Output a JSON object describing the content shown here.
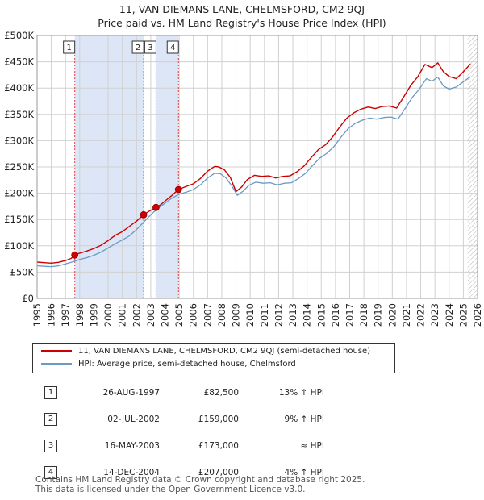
{
  "header": {
    "title": "11, VAN DIEMANS LANE, CHELMSFORD, CM2 9QJ",
    "subtitle": "Price paid vs. HM Land Registry's House Price Index (HPI)"
  },
  "colors": {
    "property": "#cc0000",
    "hpi": "#6b9ac4",
    "shade": "#dde6f7",
    "grid": "#d0d0d0",
    "marker": "#cc0000"
  },
  "chart_data": {
    "type": "line",
    "x_range": [
      1995,
      2026
    ],
    "ylim": [
      0,
      500000
    ],
    "y_ticks": [
      {
        "value": 0,
        "label": "£0"
      },
      {
        "value": 50000,
        "label": "£50K"
      },
      {
        "value": 100000,
        "label": "£100K"
      },
      {
        "value": 150000,
        "label": "£150K"
      },
      {
        "value": 200000,
        "label": "£200K"
      },
      {
        "value": 250000,
        "label": "£250K"
      },
      {
        "value": 300000,
        "label": "£300K"
      },
      {
        "value": 350000,
        "label": "£350K"
      },
      {
        "value": 400000,
        "label": "£400K"
      },
      {
        "value": 450000,
        "label": "£450K"
      },
      {
        "value": 500000,
        "label": "£500K"
      }
    ],
    "x_ticks": [
      "1995",
      "1996",
      "1997",
      "1998",
      "1999",
      "2000",
      "2001",
      "2002",
      "2003",
      "2004",
      "2005",
      "2006",
      "2007",
      "2008",
      "2009",
      "2010",
      "2011",
      "2012",
      "2013",
      "2014",
      "2015",
      "2016",
      "2017",
      "2018",
      "2019",
      "2020",
      "2021",
      "2022",
      "2023",
      "2024",
      "2025",
      "2026"
    ],
    "shaded_periods": [
      [
        1997.65,
        2002.5
      ],
      [
        2003.37,
        2004.95
      ]
    ],
    "hatched_from": 2025.3,
    "series": [
      {
        "name": "11, VAN DIEMANS LANE, CHELMSFORD, CM2 9QJ (semi-detached house)",
        "color": "#cc0000",
        "points": [
          [
            1995.0,
            69000
          ],
          [
            1995.5,
            68000
          ],
          [
            1996.0,
            67000
          ],
          [
            1996.5,
            68500
          ],
          [
            1997.0,
            72000
          ],
          [
            1997.4,
            76000
          ],
          [
            1997.65,
            82500
          ],
          [
            1998.0,
            86000
          ],
          [
            1998.5,
            90000
          ],
          [
            1999.0,
            95000
          ],
          [
            1999.5,
            101000
          ],
          [
            2000.0,
            110000
          ],
          [
            2000.5,
            120000
          ],
          [
            2001.0,
            127000
          ],
          [
            2001.5,
            137000
          ],
          [
            2002.0,
            147000
          ],
          [
            2002.5,
            159000
          ],
          [
            2002.9,
            166000
          ],
          [
            2003.37,
            173000
          ],
          [
            2003.7,
            178000
          ],
          [
            2004.0,
            185000
          ],
          [
            2004.5,
            196000
          ],
          [
            2004.95,
            207000
          ],
          [
            2005.5,
            213000
          ],
          [
            2006.0,
            218000
          ],
          [
            2006.5,
            228000
          ],
          [
            2007.0,
            242000
          ],
          [
            2007.5,
            251000
          ],
          [
            2007.8,
            250000
          ],
          [
            2008.2,
            244000
          ],
          [
            2008.6,
            230000
          ],
          [
            2009.0,
            203000
          ],
          [
            2009.4,
            212000
          ],
          [
            2009.8,
            226000
          ],
          [
            2010.3,
            234000
          ],
          [
            2010.8,
            232000
          ],
          [
            2011.3,
            233000
          ],
          [
            2011.8,
            229000
          ],
          [
            2012.3,
            232000
          ],
          [
            2012.8,
            233000
          ],
          [
            2013.3,
            241000
          ],
          [
            2013.8,
            252000
          ],
          [
            2014.3,
            268000
          ],
          [
            2014.8,
            283000
          ],
          [
            2015.3,
            292000
          ],
          [
            2015.8,
            307000
          ],
          [
            2016.3,
            326000
          ],
          [
            2016.8,
            343000
          ],
          [
            2017.3,
            353000
          ],
          [
            2017.8,
            360000
          ],
          [
            2018.3,
            364000
          ],
          [
            2018.8,
            361000
          ],
          [
            2019.3,
            365000
          ],
          [
            2019.8,
            366000
          ],
          [
            2020.3,
            362000
          ],
          [
            2020.8,
            383000
          ],
          [
            2021.3,
            405000
          ],
          [
            2021.8,
            422000
          ],
          [
            2022.3,
            445000
          ],
          [
            2022.8,
            439000
          ],
          [
            2023.2,
            448000
          ],
          [
            2023.6,
            431000
          ],
          [
            2024.0,
            422000
          ],
          [
            2024.5,
            418000
          ],
          [
            2024.9,
            428000
          ],
          [
            2025.3,
            440000
          ],
          [
            2025.5,
            446000
          ]
        ]
      },
      {
        "name": "HPI: Average price, semi-detached house, Chelmsford",
        "color": "#6b9ac4",
        "points": [
          [
            1995.0,
            62000
          ],
          [
            1995.5,
            61000
          ],
          [
            1996.0,
            60500
          ],
          [
            1996.5,
            62000
          ],
          [
            1997.0,
            65500
          ],
          [
            1997.5,
            69500
          ],
          [
            1998.0,
            74000
          ],
          [
            1998.5,
            77500
          ],
          [
            1999.0,
            82000
          ],
          [
            1999.5,
            88000
          ],
          [
            2000.0,
            96000
          ],
          [
            2000.5,
            104000
          ],
          [
            2001.0,
            111000
          ],
          [
            2001.5,
            119000
          ],
          [
            2002.0,
            131000
          ],
          [
            2002.5,
            145000
          ],
          [
            2003.0,
            159000
          ],
          [
            2003.5,
            171000
          ],
          [
            2004.0,
            181000
          ],
          [
            2004.5,
            191000
          ],
          [
            2005.0,
            198000
          ],
          [
            2005.5,
            202000
          ],
          [
            2006.0,
            207000
          ],
          [
            2006.5,
            216000
          ],
          [
            2007.0,
            229000
          ],
          [
            2007.5,
            238000
          ],
          [
            2007.9,
            237000
          ],
          [
            2008.3,
            229000
          ],
          [
            2008.7,
            214000
          ],
          [
            2009.1,
            196000
          ],
          [
            2009.5,
            204000
          ],
          [
            2009.9,
            215000
          ],
          [
            2010.4,
            221000
          ],
          [
            2010.9,
            219000
          ],
          [
            2011.4,
            220000
          ],
          [
            2011.9,
            216000
          ],
          [
            2012.4,
            219000
          ],
          [
            2012.9,
            220000
          ],
          [
            2013.4,
            228000
          ],
          [
            2013.9,
            238000
          ],
          [
            2014.4,
            253000
          ],
          [
            2014.9,
            267000
          ],
          [
            2015.4,
            276000
          ],
          [
            2015.9,
            289000
          ],
          [
            2016.4,
            307000
          ],
          [
            2016.9,
            323000
          ],
          [
            2017.4,
            333000
          ],
          [
            2017.9,
            339000
          ],
          [
            2018.4,
            343000
          ],
          [
            2018.9,
            341000
          ],
          [
            2019.4,
            344000
          ],
          [
            2019.9,
            345000
          ],
          [
            2020.4,
            341000
          ],
          [
            2020.9,
            361000
          ],
          [
            2021.4,
            382000
          ],
          [
            2021.9,
            398000
          ],
          [
            2022.4,
            418000
          ],
          [
            2022.8,
            413000
          ],
          [
            2023.2,
            421000
          ],
          [
            2023.6,
            404000
          ],
          [
            2024.0,
            398000
          ],
          [
            2024.5,
            402000
          ],
          [
            2024.9,
            410000
          ],
          [
            2025.3,
            418000
          ],
          [
            2025.5,
            422000
          ]
        ]
      }
    ],
    "sales": [
      {
        "label": "1",
        "year": 1997.65,
        "price": 82500
      },
      {
        "label": "2",
        "year": 2002.5,
        "price": 159000
      },
      {
        "label": "3",
        "year": 2003.37,
        "price": 173000
      },
      {
        "label": "4",
        "year": 2004.95,
        "price": 207000
      }
    ]
  },
  "legend": {
    "property_label": "11, VAN DIEMANS LANE, CHELMSFORD, CM2 9QJ (semi-detached house)",
    "hpi_label": "HPI: Average price, semi-detached house, Chelmsford"
  },
  "transactions": [
    {
      "num": "1",
      "date": "26-AUG-1997",
      "price": "£82,500",
      "hpi": "13% ↑ HPI"
    },
    {
      "num": "2",
      "date": "02-JUL-2002",
      "price": "£159,000",
      "hpi": "9% ↑ HPI"
    },
    {
      "num": "3",
      "date": "16-MAY-2003",
      "price": "£173,000",
      "hpi": "≈ HPI"
    },
    {
      "num": "4",
      "date": "14-DEC-2004",
      "price": "£207,000",
      "hpi": "4% ↑ HPI"
    }
  ],
  "footer": {
    "line1": "Contains HM Land Registry data © Crown copyright and database right 2025.",
    "line2": "This data is licensed under the Open Government Licence v3.0."
  }
}
